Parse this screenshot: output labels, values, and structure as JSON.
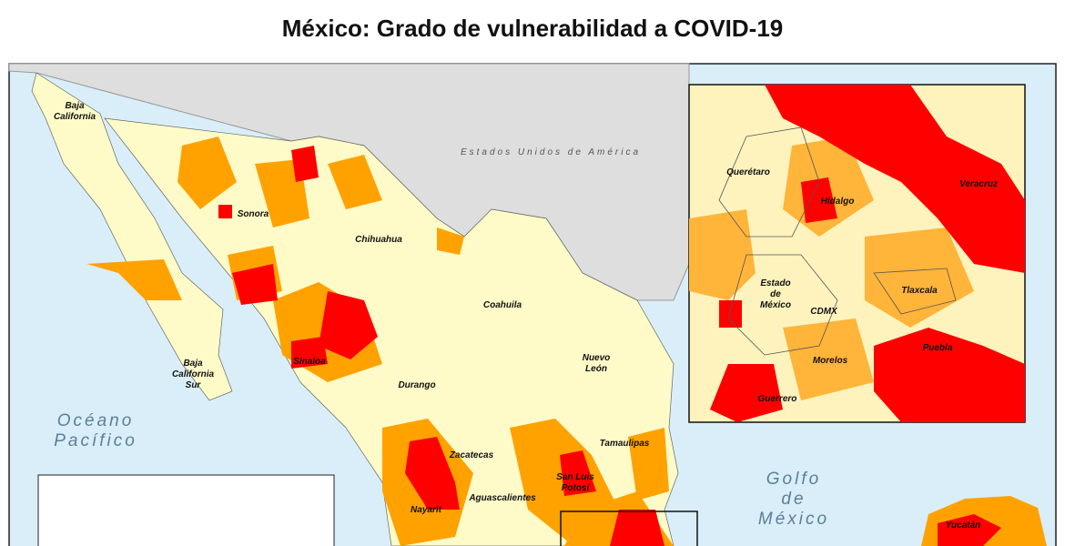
{
  "title": "México: Grado de vulnerabilidad a COVID-19",
  "country_labels": [
    [
      "Estados Unidos de América"
    ]
  ],
  "water_labels": [
    [
      "Océano",
      "Pacífico"
    ],
    [
      "Golfo",
      "de",
      "México"
    ]
  ],
  "state_labels": [
    [
      "Baja",
      "California"
    ],
    [
      "Sonora"
    ],
    [
      "Chihuahua"
    ],
    [
      "Coahuila"
    ],
    [
      "Nuevo",
      "León"
    ],
    [
      "Baja",
      "California",
      "Sur"
    ],
    [
      "Sinaloa"
    ],
    [
      "Durango"
    ],
    [
      "Zacatecas"
    ],
    [
      "Tamaulipas"
    ],
    [
      "San Luis",
      "Potosí"
    ],
    [
      "Aguascalientes"
    ],
    [
      "Nayarit"
    ],
    [
      "Yucatán"
    ]
  ],
  "inset_labels": [
    [
      "Querétaro"
    ],
    [
      "Hidalgo"
    ],
    [
      "Veracruz"
    ],
    [
      "Estado",
      "de",
      "México"
    ],
    [
      "CDMX"
    ],
    [
      "Tlaxcala"
    ],
    [
      "Puebla"
    ],
    [
      "Morelos"
    ],
    [
      "Guerrero"
    ]
  ]
}
